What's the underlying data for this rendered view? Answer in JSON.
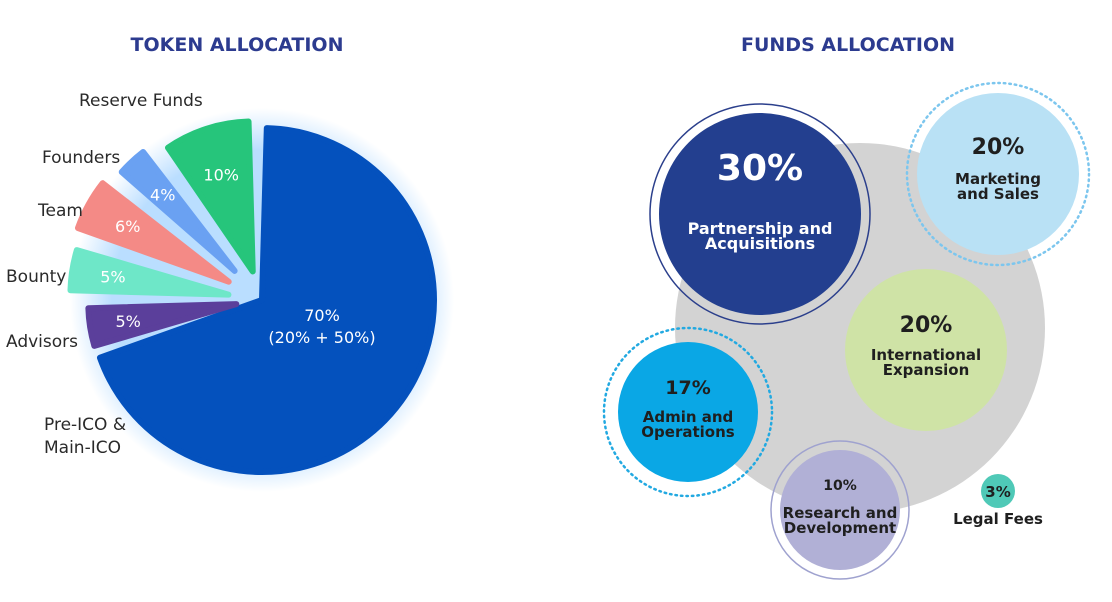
{
  "chart_data": [
    {
      "type": "pie",
      "title": "TOKEN ALLOCATION",
      "slices": [
        {
          "label": "Pre-ICO & Main-ICO",
          "label_lines": [
            "Pre-ICO &",
            "Main-ICO"
          ],
          "value": 70,
          "display": [
            "70%",
            "(20% + 50%)"
          ],
          "color": "#0451bd"
        },
        {
          "label": "Advisors",
          "label_lines": [
            "Advisors"
          ],
          "value": 5,
          "display": [
            "5%"
          ],
          "color": "#5b3f9b"
        },
        {
          "label": "Bounty",
          "label_lines": [
            "Bounty"
          ],
          "value": 5,
          "display": [
            "5%"
          ],
          "color": "#6ee7c8"
        },
        {
          "label": "Team",
          "label_lines": [
            "Team"
          ],
          "value": 6,
          "display": [
            "6%"
          ],
          "color": "#f48a86"
        },
        {
          "label": "Founders",
          "label_lines": [
            "Founders"
          ],
          "value": 4,
          "display": [
            "4%"
          ],
          "color": "#6aa1f2"
        },
        {
          "label": "Reserve Funds",
          "label_lines": [
            "Reserve Funds"
          ],
          "value": 10,
          "display": [
            "10%"
          ],
          "color": "#26c57b"
        }
      ]
    },
    {
      "type": "bubble",
      "title": "FUNDS ALLOCATION",
      "items": [
        {
          "label": "Partnership and Acquisitions",
          "label_lines": [
            "Partnership and",
            "Acquisitions"
          ],
          "value": 30,
          "display": "30%",
          "color": "#233f8f",
          "text_color": "light"
        },
        {
          "label": "Marketing and Sales",
          "label_lines": [
            "Marketing",
            "and Sales"
          ],
          "value": 20,
          "display": "20%",
          "color": "#b9e1f5",
          "text_color": "dark"
        },
        {
          "label": "International Expansion",
          "label_lines": [
            "International",
            "Expansion"
          ],
          "value": 20,
          "display": "20%",
          "color": "#cfe3a6",
          "text_color": "dark"
        },
        {
          "label": "Admin and Operations",
          "label_lines": [
            "Admin and",
            "Operations"
          ],
          "value": 17,
          "display": "17%",
          "color": "#0aa7e5",
          "text_color": "dark"
        },
        {
          "label": "Research and Development",
          "label_lines": [
            "Research and",
            "Development"
          ],
          "value": 10,
          "display": "10%",
          "color": "#b1b0d6",
          "text_color": "dark"
        },
        {
          "label": "Legal Fees",
          "label_lines": [
            "Legal Fees"
          ],
          "value": 3,
          "display": "3%",
          "color": "#4fc9b7",
          "text_color": "dark"
        }
      ],
      "background_color": "#d3d3d3"
    }
  ]
}
